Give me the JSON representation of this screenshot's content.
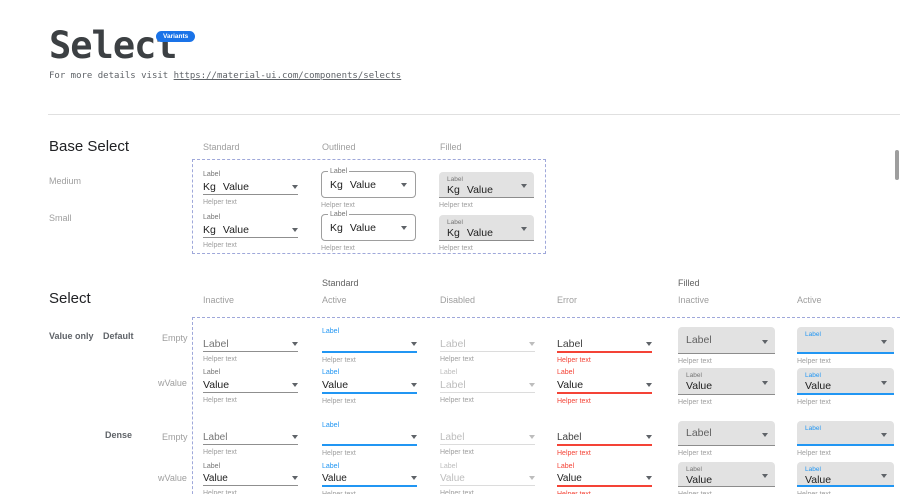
{
  "page": {
    "title": "Select",
    "badge": "Variants",
    "subtitle_prefix": "For more details visit ",
    "subtitle_link": "https://material-ui.com/components/selects"
  },
  "colors": {
    "accent_blue": "#2196f3",
    "error_red": "#f44336",
    "badge_blue": "#1a73e8",
    "dashed_border": "#9fa8da",
    "filled_bg": "#e2e2e2"
  },
  "base_section": {
    "heading": "Base Select",
    "columns": [
      "Standard",
      "Outlined",
      "Filled"
    ],
    "rows": [
      "Medium",
      "Small"
    ],
    "cells": [
      {
        "v": "standard",
        "row": 0,
        "col": 0,
        "label": "Label",
        "prefix": "Kg",
        "value": "Value",
        "helper": "Helper text"
      },
      {
        "v": "outlined",
        "row": 0,
        "col": 1,
        "label": "Label",
        "prefix": "Kg",
        "value": "Value",
        "helper": "Helper text"
      },
      {
        "v": "filled",
        "row": 0,
        "col": 2,
        "label": "Label",
        "prefix": "Kg",
        "value": "Value",
        "helper": "Helper text"
      },
      {
        "v": "standard",
        "row": 1,
        "col": 0,
        "label": "Label",
        "prefix": "Kg",
        "value": "Value",
        "helper": "Helper text"
      },
      {
        "v": "outlined",
        "row": 1,
        "col": 1,
        "label": "Label",
        "prefix": "Kg",
        "value": "Value",
        "helper": "Helper text"
      },
      {
        "v": "filled",
        "row": 1,
        "col": 2,
        "label": "Label",
        "prefix": "Kg",
        "value": "Value",
        "helper": "Helper text"
      }
    ]
  },
  "select_section": {
    "heading": "Select",
    "group_headers": [
      "Standard",
      "Filled"
    ],
    "columns": [
      "Inactive",
      "Active",
      "Disabled",
      "Error",
      "Inactive",
      "Active"
    ],
    "row_labels": {
      "category": "Value only",
      "default": "Default",
      "dense": "Dense",
      "empty": "Empty",
      "with_value": "wValue"
    },
    "cells": [
      {
        "v": "standard",
        "s": "inactive",
        "d": 0,
        "row": 0,
        "col": 0,
        "float": null,
        "text": "Label",
        "ph": true,
        "helper": "Helper text"
      },
      {
        "v": "standard",
        "s": "active",
        "d": 0,
        "row": 0,
        "col": 1,
        "float": "Label",
        "text": "",
        "ph": false,
        "helper": "Helper text"
      },
      {
        "v": "standard",
        "s": "disabled",
        "d": 0,
        "row": 0,
        "col": 2,
        "float": null,
        "text": "Label",
        "ph": true,
        "helper": "Helper text"
      },
      {
        "v": "standard",
        "s": "error",
        "d": 0,
        "row": 0,
        "col": 3,
        "float": null,
        "text": "Label",
        "ph": true,
        "helper": "Helper text"
      },
      {
        "v": "filled",
        "s": "inactive",
        "d": 0,
        "row": 0,
        "col": 4,
        "float": null,
        "text": "Label",
        "ph": true,
        "helper": "Helper text"
      },
      {
        "v": "filled",
        "s": "active",
        "d": 0,
        "row": 0,
        "col": 5,
        "float": "Label",
        "text": "",
        "ph": false,
        "helper": "Helper text"
      },
      {
        "v": "standard",
        "s": "inactive",
        "d": 0,
        "row": 1,
        "col": 0,
        "float": "Label",
        "text": "Value",
        "ph": false,
        "helper": "Helper text"
      },
      {
        "v": "standard",
        "s": "active",
        "d": 0,
        "row": 1,
        "col": 1,
        "float": "Label",
        "text": "Value",
        "ph": false,
        "helper": "Helper text"
      },
      {
        "v": "standard",
        "s": "disabled",
        "d": 0,
        "row": 1,
        "col": 2,
        "float": "Label",
        "text": "Label",
        "ph": false,
        "helper": "Helper text"
      },
      {
        "v": "standard",
        "s": "error",
        "d": 0,
        "row": 1,
        "col": 3,
        "float": "Label",
        "text": "Value",
        "ph": false,
        "helper": "Helper text"
      },
      {
        "v": "filled",
        "s": "inactive",
        "d": 0,
        "row": 1,
        "col": 4,
        "float": "Label",
        "text": "Value",
        "ph": false,
        "helper": "Helper text"
      },
      {
        "v": "filled",
        "s": "active",
        "d": 0,
        "row": 1,
        "col": 5,
        "float": "Label",
        "text": "Value",
        "ph": false,
        "helper": "Helper text"
      },
      {
        "v": "standard",
        "s": "inactive",
        "d": 1,
        "row": 2,
        "col": 0,
        "float": null,
        "text": "Label",
        "ph": true,
        "helper": "Helper text"
      },
      {
        "v": "standard",
        "s": "active",
        "d": 1,
        "row": 2,
        "col": 1,
        "float": "Label",
        "text": "",
        "ph": false,
        "helper": "Helper text"
      },
      {
        "v": "standard",
        "s": "disabled",
        "d": 1,
        "row": 2,
        "col": 2,
        "float": null,
        "text": "Label",
        "ph": true,
        "helper": "Helper text"
      },
      {
        "v": "standard",
        "s": "error",
        "d": 1,
        "row": 2,
        "col": 3,
        "float": null,
        "text": "Label",
        "ph": true,
        "helper": "Helper text"
      },
      {
        "v": "filled",
        "s": "inactive",
        "d": 1,
        "row": 2,
        "col": 4,
        "float": null,
        "text": "Label",
        "ph": true,
        "helper": "Helper text"
      },
      {
        "v": "filled",
        "s": "active",
        "d": 1,
        "row": 2,
        "col": 5,
        "float": "Label",
        "text": "",
        "ph": false,
        "helper": "Helper text"
      },
      {
        "v": "standard",
        "s": "inactive",
        "d": 1,
        "row": 3,
        "col": 0,
        "float": "Label",
        "text": "Value",
        "ph": false,
        "helper": "Helper text"
      },
      {
        "v": "standard",
        "s": "active",
        "d": 1,
        "row": 3,
        "col": 1,
        "float": "Label",
        "text": "Value",
        "ph": false,
        "helper": "Helper text"
      },
      {
        "v": "standard",
        "s": "disabled",
        "d": 1,
        "row": 3,
        "col": 2,
        "float": "Label",
        "text": "Value",
        "ph": false,
        "helper": "Helper text"
      },
      {
        "v": "standard",
        "s": "error",
        "d": 1,
        "row": 3,
        "col": 3,
        "float": "Label",
        "text": "Value",
        "ph": false,
        "helper": "Helper text"
      },
      {
        "v": "filled",
        "s": "inactive",
        "d": 1,
        "row": 3,
        "col": 4,
        "float": "Label",
        "text": "Value",
        "ph": false,
        "helper": "Helper text"
      },
      {
        "v": "filled",
        "s": "active",
        "d": 1,
        "row": 3,
        "col": 5,
        "float": "Label",
        "text": "Value",
        "ph": false,
        "helper": "Helper text"
      }
    ]
  }
}
